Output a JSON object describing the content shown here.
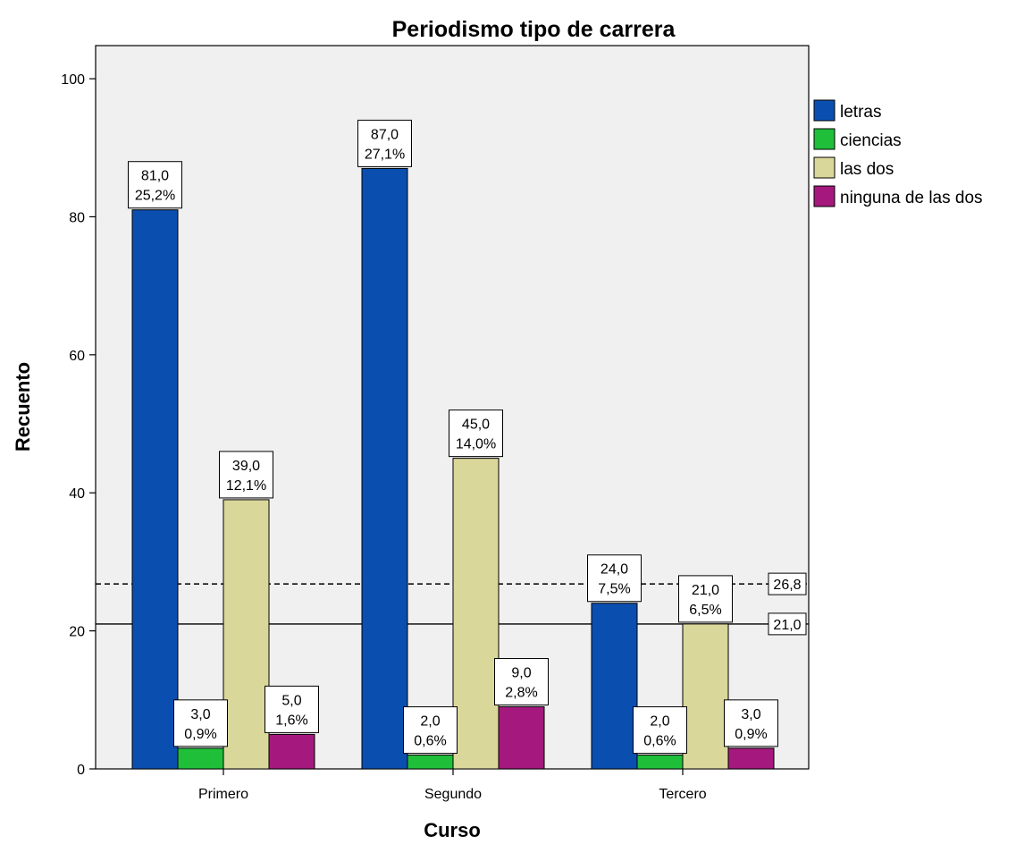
{
  "chart_data": {
    "type": "bar",
    "title": "Periodismo tipo de carrera",
    "xlabel": "Curso",
    "ylabel": "Recuento",
    "categories": [
      "Primero",
      "Segundo",
      "Tercero"
    ],
    "ylim": [
      0,
      100
    ],
    "yticks": [
      "0",
      "20",
      "40",
      "60",
      "80",
      "100"
    ],
    "series": [
      {
        "name": "letras",
        "color": "#0a4fb0",
        "values": [
          81,
          87,
          24
        ],
        "value_labels": [
          "81,0",
          "87,0",
          "24,0"
        ],
        "percent_labels": [
          "25,2%",
          "27,1%",
          "7,5%"
        ]
      },
      {
        "name": "ciencias",
        "color": "#1fbf3a",
        "values": [
          3,
          2,
          2
        ],
        "value_labels": [
          "3,0",
          "2,0",
          "2,0"
        ],
        "percent_labels": [
          "0,9%",
          "0,6%",
          "0,6%"
        ]
      },
      {
        "name": "las dos",
        "color": "#dad79a",
        "values": [
          39,
          45,
          21
        ],
        "value_labels": [
          "39,0",
          "45,0",
          "21,0"
        ],
        "percent_labels": [
          "12,1%",
          "14,0%",
          "6,5%"
        ]
      },
      {
        "name": "ninguna de las dos",
        "color": "#a5197e",
        "values": [
          5,
          9,
          3
        ],
        "value_labels": [
          "5,0",
          "9,0",
          "3,0"
        ],
        "percent_labels": [
          "1,6%",
          "2,8%",
          "0,9%"
        ]
      }
    ],
    "reference_lines": [
      {
        "value": 26.8,
        "label": "26,8",
        "style": "dashed"
      },
      {
        "value": 21.0,
        "label": "21,0",
        "style": "solid"
      }
    ],
    "grid": false,
    "legend": "top-right",
    "plot_background": "#f0f0f0"
  }
}
